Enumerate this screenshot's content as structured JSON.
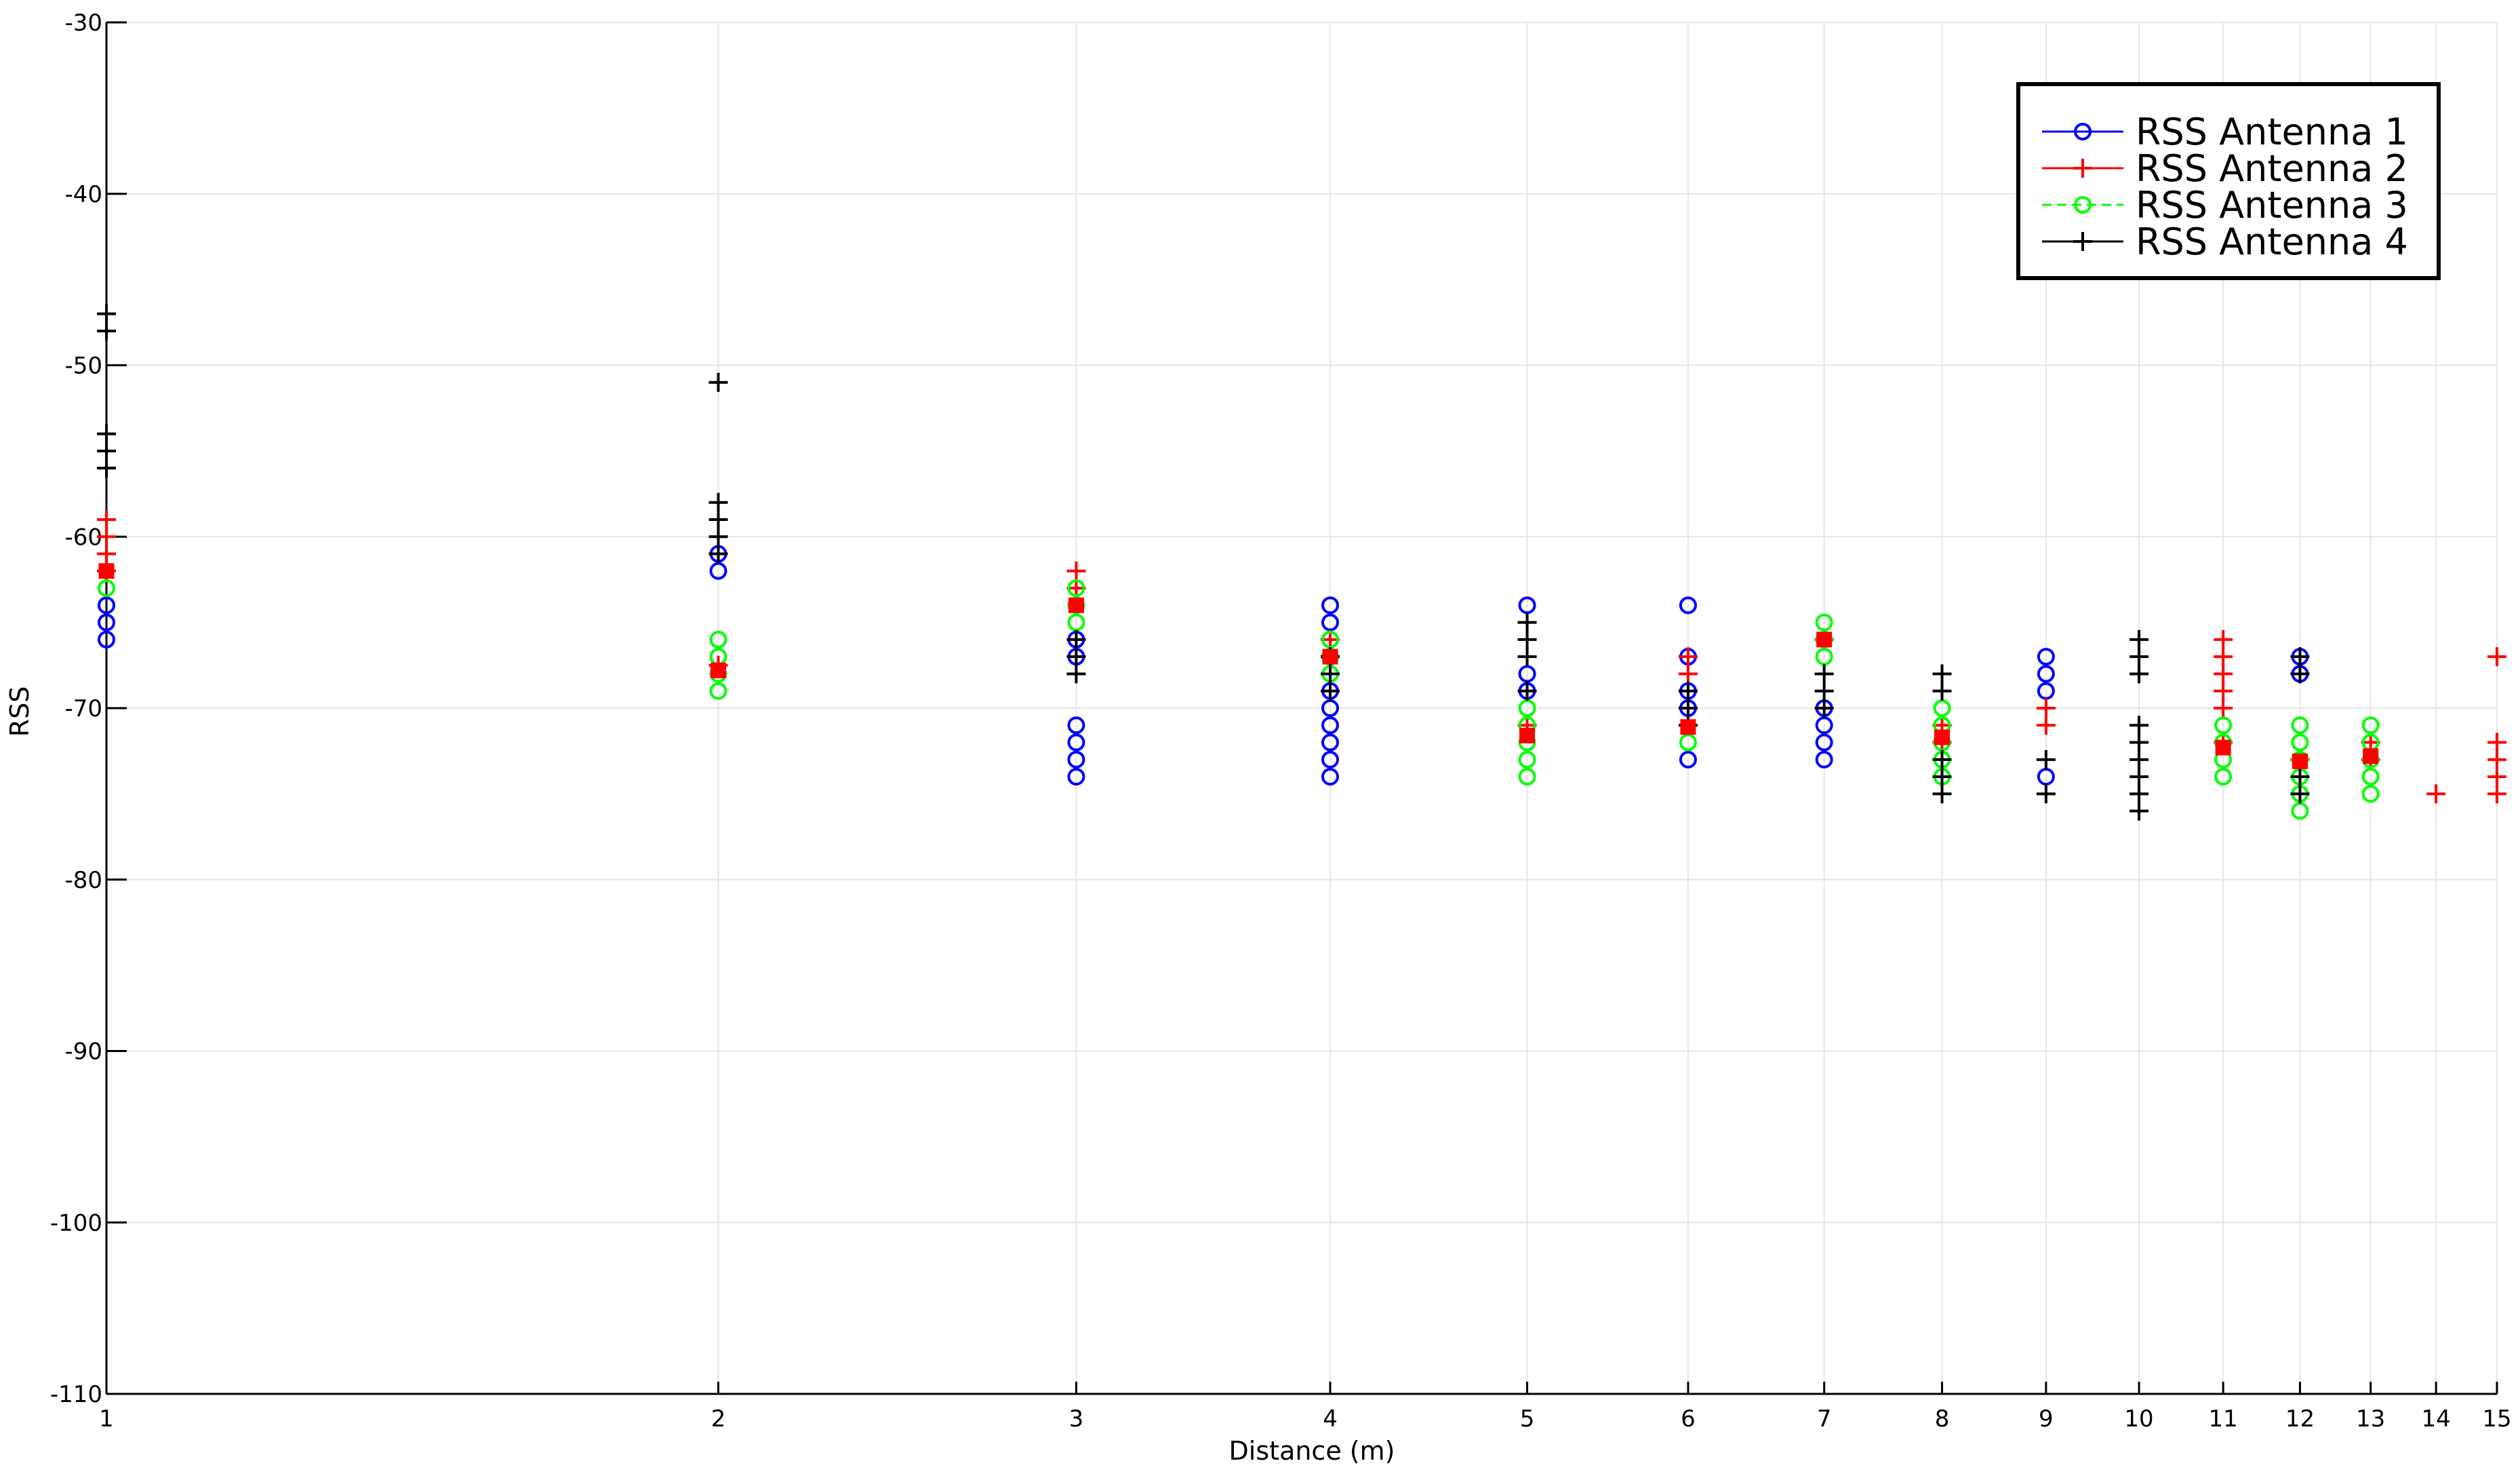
{
  "chart_data": {
    "type": "scatter",
    "title": "",
    "xlabel": "Distance (m)",
    "ylabel": "RSS",
    "x_scale": "log",
    "xlim": [
      1,
      15
    ],
    "ylim": [
      -110,
      -30
    ],
    "x_ticks": [
      1,
      2,
      3,
      4,
      5,
      6,
      7,
      8,
      9,
      10,
      11,
      12,
      13,
      14,
      15
    ],
    "y_ticks": [
      -110,
      -100,
      -90,
      -80,
      -70,
      -60,
      -50,
      -40,
      -30
    ],
    "grid": true,
    "legend_position": "top-right",
    "series": [
      {
        "name": "RSS Antenna 1",
        "color": "#0000ff",
        "marker": "circle",
        "points": [
          [
            1,
            -64
          ],
          [
            1,
            -65
          ],
          [
            1,
            -66
          ],
          [
            2,
            -61
          ],
          [
            2,
            -62
          ],
          [
            3,
            -66
          ],
          [
            3,
            -67
          ],
          [
            3,
            -71
          ],
          [
            3,
            -72
          ],
          [
            3,
            -73
          ],
          [
            3,
            -74
          ],
          [
            4,
            -64
          ],
          [
            4,
            -65
          ],
          [
            4,
            -66
          ],
          [
            4,
            -67
          ],
          [
            4,
            -69
          ],
          [
            4,
            -70
          ],
          [
            4,
            -71
          ],
          [
            4,
            -72
          ],
          [
            4,
            -73
          ],
          [
            4,
            -74
          ],
          [
            5,
            -64
          ],
          [
            5,
            -68
          ],
          [
            5,
            -69
          ],
          [
            6,
            -64
          ],
          [
            6,
            -67
          ],
          [
            6,
            -69
          ],
          [
            6,
            -70
          ],
          [
            6,
            -73
          ],
          [
            7,
            -70
          ],
          [
            7,
            -71
          ],
          [
            7,
            -72
          ],
          [
            7,
            -73
          ],
          [
            9,
            -67
          ],
          [
            9,
            -68
          ],
          [
            9,
            -69
          ],
          [
            9,
            -74
          ],
          [
            12,
            -67
          ],
          [
            12,
            -68
          ]
        ]
      },
      {
        "name": "RSS Antenna 2",
        "color": "#ff0000",
        "marker": "plus",
        "points": [
          [
            1,
            -59
          ],
          [
            1,
            -60
          ],
          [
            1,
            -61
          ],
          [
            1,
            -62
          ],
          [
            2,
            -67.5
          ],
          [
            3,
            -62
          ],
          [
            3,
            -63
          ],
          [
            4,
            -66
          ],
          [
            4,
            -67
          ],
          [
            5,
            -71
          ],
          [
            6,
            -67
          ],
          [
            6,
            -68
          ],
          [
            6,
            -70
          ],
          [
            6,
            -71
          ],
          [
            7,
            -66
          ],
          [
            8,
            -71
          ],
          [
            8,
            -72
          ],
          [
            9,
            -70
          ],
          [
            9,
            -71
          ],
          [
            11,
            -66
          ],
          [
            11,
            -67
          ],
          [
            11,
            -68
          ],
          [
            11,
            -69
          ],
          [
            11,
            -70
          ],
          [
            11,
            -72
          ],
          [
            12,
            -73
          ],
          [
            13,
            -72
          ],
          [
            13,
            -73
          ],
          [
            14,
            -75
          ],
          [
            15,
            -67
          ],
          [
            15,
            -72
          ],
          [
            15,
            -73
          ],
          [
            15,
            -74
          ],
          [
            15,
            -75
          ]
        ]
      },
      {
        "name": "RSS Antenna 3",
        "color": "#00ff00",
        "marker": "circle",
        "points": [
          [
            1,
            -63
          ],
          [
            2,
            -66
          ],
          [
            2,
            -67
          ],
          [
            2,
            -68
          ],
          [
            2,
            -69
          ],
          [
            3,
            -63
          ],
          [
            3,
            -64
          ],
          [
            3,
            -65
          ],
          [
            4,
            -66
          ],
          [
            4,
            -67
          ],
          [
            4,
            -68
          ],
          [
            5,
            -70
          ],
          [
            5,
            -71
          ],
          [
            5,
            -72
          ],
          [
            5,
            -73
          ],
          [
            5,
            -74
          ],
          [
            6,
            -72
          ],
          [
            7,
            -65
          ],
          [
            7,
            -66
          ],
          [
            7,
            -67
          ],
          [
            8,
            -70
          ],
          [
            8,
            -71
          ],
          [
            8,
            -72
          ],
          [
            8,
            -73
          ],
          [
            8,
            -74
          ],
          [
            11,
            -71
          ],
          [
            11,
            -72
          ],
          [
            11,
            -73
          ],
          [
            11,
            -74
          ],
          [
            12,
            -71
          ],
          [
            12,
            -72
          ],
          [
            12,
            -73
          ],
          [
            12,
            -74
          ],
          [
            12,
            -75
          ],
          [
            12,
            -76
          ],
          [
            13,
            -71
          ],
          [
            13,
            -72
          ],
          [
            13,
            -73
          ],
          [
            13,
            -74
          ],
          [
            13,
            -75
          ]
        ]
      },
      {
        "name": "RSS Antenna 4",
        "color": "#000000",
        "marker": "plus",
        "points": [
          [
            1,
            -47
          ],
          [
            1,
            -48
          ],
          [
            1,
            -54
          ],
          [
            1,
            -55
          ],
          [
            1,
            -56
          ],
          [
            2,
            -51
          ],
          [
            2,
            -58
          ],
          [
            2,
            -59
          ],
          [
            2,
            -60
          ],
          [
            2,
            -61
          ],
          [
            3,
            -66
          ],
          [
            3,
            -67
          ],
          [
            3,
            -68
          ],
          [
            4,
            -67
          ],
          [
            4,
            -68
          ],
          [
            4,
            -69
          ],
          [
            5,
            -65
          ],
          [
            5,
            -66
          ],
          [
            5,
            -67
          ],
          [
            5,
            -69
          ],
          [
            6,
            -69
          ],
          [
            6,
            -70
          ],
          [
            6,
            -71
          ],
          [
            7,
            -68
          ],
          [
            7,
            -69
          ],
          [
            7,
            -70
          ],
          [
            8,
            -68
          ],
          [
            8,
            -69
          ],
          [
            8,
            -73
          ],
          [
            8,
            -74
          ],
          [
            8,
            -75
          ],
          [
            9,
            -73
          ],
          [
            9,
            -75
          ],
          [
            10,
            -66
          ],
          [
            10,
            -67
          ],
          [
            10,
            -68
          ],
          [
            10,
            -71
          ],
          [
            10,
            -72
          ],
          [
            10,
            -73
          ],
          [
            10,
            -74
          ],
          [
            10,
            -75
          ],
          [
            10,
            -76
          ],
          [
            12,
            -67
          ],
          [
            12,
            -68
          ],
          [
            12,
            -74
          ],
          [
            12,
            -75
          ]
        ]
      }
    ],
    "mean_markers": {
      "color": "#ff0000",
      "marker": "square",
      "points": [
        [
          1,
          -62
        ],
        [
          2,
          -67.8
        ],
        [
          3,
          -64
        ],
        [
          4,
          -67
        ],
        [
          5,
          -71.6
        ],
        [
          6,
          -71.1
        ],
        [
          7,
          -66
        ],
        [
          8,
          -71.7
        ],
        [
          11,
          -72.3
        ],
        [
          12,
          -73.1
        ],
        [
          13,
          -72.8
        ]
      ]
    }
  }
}
